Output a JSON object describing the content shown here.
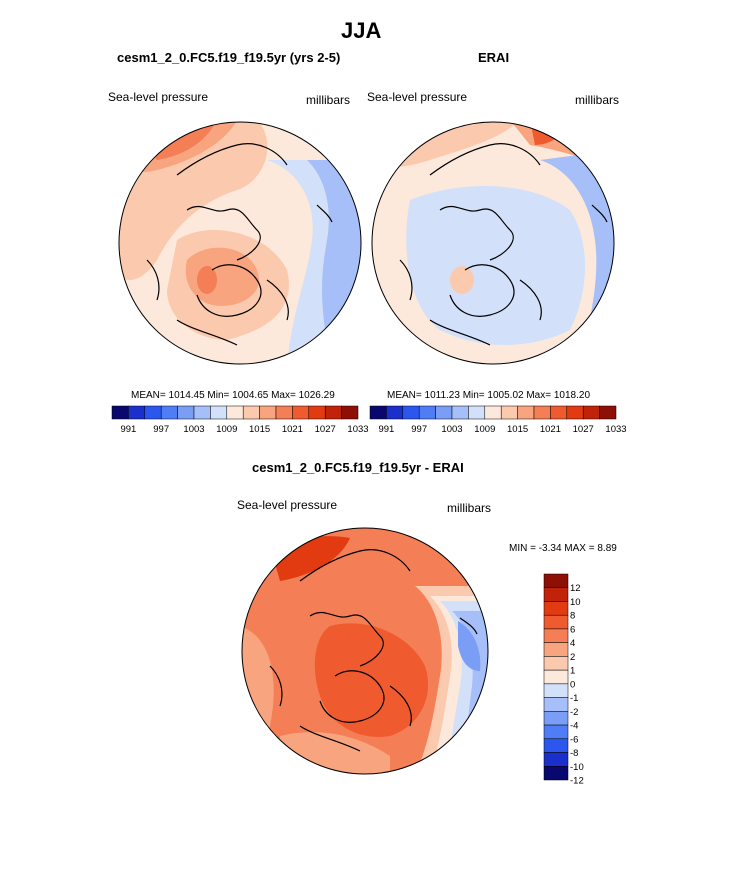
{
  "figure": {
    "title": "JJA",
    "panel_left_title": "cesm1_2_0.FC5.f19_f19.5yr (yrs 2-5)",
    "panel_right_title": "ERAI",
    "panel_diff_title": "cesm1_2_0.FC5.f19_f19.5yr - ERAI"
  },
  "chart_data": [
    {
      "type": "heatmap",
      "projection": "north-polar-stereographic",
      "title": "cesm1_2_0.FC5.f19_f19.5yr (yrs 2-5)",
      "variable_label": "Sea-level pressure",
      "units_label": "millibars",
      "stats_text": "MEAN= 1014.45  Min= 1004.65  Max= 1026.29",
      "stats": {
        "mean": 1014.45,
        "min": 1004.65,
        "max": 1026.29
      },
      "color_levels": [
        991,
        994,
        997,
        1000,
        1003,
        1006,
        1009,
        1012,
        1015,
        1018,
        1021,
        1024,
        1027,
        1030,
        1033
      ],
      "tick_labels": [
        "991",
        "997",
        "1003",
        "1009",
        "1015",
        "1021",
        "1027",
        "1033"
      ],
      "colorbar": "shared-bottom"
    },
    {
      "type": "heatmap",
      "projection": "north-polar-stereographic",
      "title": "ERAI",
      "variable_label": "Sea-level pressure",
      "units_label": "millibars",
      "stats_text": "MEAN= 1011.23  Min= 1005.02  Max= 1018.20",
      "stats": {
        "mean": 1011.23,
        "min": 1005.02,
        "max": 1018.2
      },
      "color_levels": [
        991,
        994,
        997,
        1000,
        1003,
        1006,
        1009,
        1012,
        1015,
        1018,
        1021,
        1024,
        1027,
        1030,
        1033
      ],
      "tick_labels": [
        "991",
        "997",
        "1003",
        "1009",
        "1015",
        "1021",
        "1027",
        "1033"
      ],
      "colorbar": "shared-bottom"
    },
    {
      "type": "heatmap",
      "projection": "north-polar-stereographic",
      "title": "cesm1_2_0.FC5.f19_f19.5yr - ERAI",
      "variable_label": "Sea-level pressure",
      "units_label": "millibars",
      "stats_text": "MIN =  -3.34 MAX =   8.89",
      "stats": {
        "min": -3.34,
        "max": 8.89
      },
      "color_levels": [
        -12,
        -10,
        -8,
        -6,
        -4,
        -2,
        -1,
        0,
        1,
        2,
        4,
        6,
        8,
        10,
        12
      ],
      "tick_labels": [
        "12",
        "10",
        "8",
        "6",
        "4",
        "2",
        "1",
        "0",
        "-1",
        "-2",
        "-4",
        "-6",
        "-8",
        "-10",
        "-12"
      ],
      "colorbar": "vertical-right"
    }
  ],
  "palette": [
    "#08086e",
    "#1a2fcc",
    "#2b57ee",
    "#4f7df5",
    "#7a9ef6",
    "#a6bff8",
    "#d3e0fa",
    "#fde9dc",
    "#fbc9ad",
    "#f7a47f",
    "#f47e55",
    "#ef5a2f",
    "#e23b12",
    "#c02309",
    "#8e0f05"
  ],
  "field_colors": {
    "model": {
      "base": "#fde9dc",
      "mid": "#fbc9ad",
      "high": "#f7a47f",
      "peak": "#f47e55",
      "low1": "#d3e0fa",
      "low2": "#a6bff8",
      "low3": "#7a9ef6"
    },
    "erai": {
      "base": "#fde9dc",
      "mid": "#fbc9ad",
      "high": "#f7a47f",
      "peak": "#ef5a2f",
      "low1": "#d3e0fa",
      "low2": "#a6bff8",
      "low3": "#7a9ef6"
    },
    "diff": {
      "base": "#f47e55",
      "mid": "#f7a47f",
      "light": "#fbc9ad",
      "pale": "#fde9dc",
      "deep": "#ef5a2f",
      "peak": "#e23b12",
      "low1": "#d3e0fa",
      "low2": "#a6bff8",
      "low3": "#7a9ef6"
    }
  }
}
